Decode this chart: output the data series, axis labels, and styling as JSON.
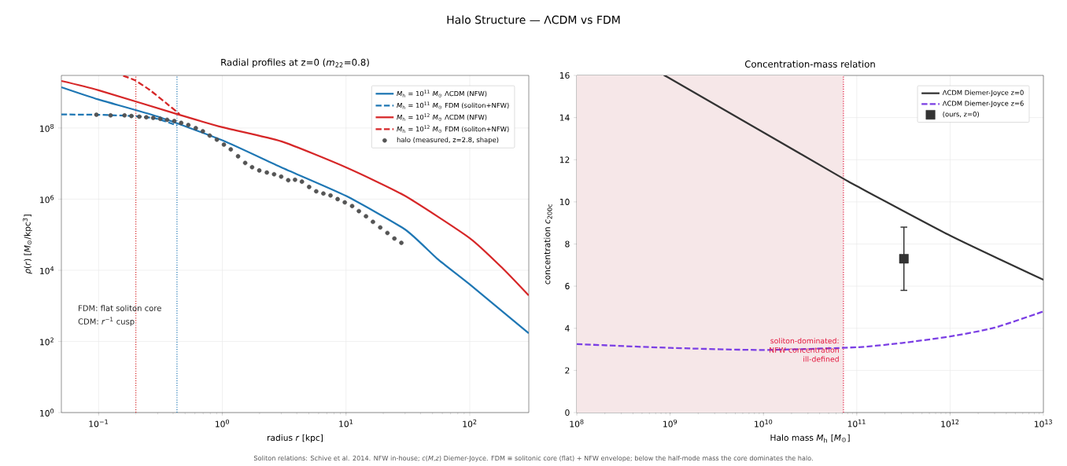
{
  "chart_data": [
    {
      "type": "line",
      "title": "Radial profiles at z=0  (*m*$_{22}$=0.8)",
      "xlabel": "radius  *r* [kpc]",
      "ylabel": "*ρ*(*r*) [*M*$_{⊙}$/kpc$^{3}$]",
      "log": "xy",
      "xlim": [
        0.05,
        300
      ],
      "ylim": [
        1,
        3000000000.0
      ],
      "xticks": [
        {
          "value": 0.1,
          "label": "10$^{−1}$"
        },
        {
          "value": 1,
          "label": "10$^{0}$"
        },
        {
          "value": 10,
          "label": "10$^{1}$"
        },
        {
          "value": 100,
          "label": "10$^{2}$"
        }
      ],
      "yticks": [
        {
          "value": 1,
          "label": "10$^{0}$"
        },
        {
          "value": 100,
          "label": "10$^{2}$"
        },
        {
          "value": 10000,
          "label": "10$^{4}$"
        },
        {
          "value": 1000000,
          "label": "10$^{6}$"
        },
        {
          "value": 100000000,
          "label": "10$^{8}$"
        }
      ],
      "grid": true,
      "legend": "top right",
      "series": [
        {
          "name": "*M*$_{h}$ = 10$^{11}$ *M*$_{⊙}$ ΛCDM (NFW)",
          "color": "#1f77b4",
          "line_style": "solid",
          "x": [
            0.05,
            0.1,
            0.3,
            1,
            3,
            10,
            30,
            54.7,
            100,
            300
          ],
          "values": [
            1400000000.0,
            630000000.0,
            210000000.0,
            45000000.0,
            7800000.0,
            1230000.0,
            140000.0,
            21000.0,
            4000,
            170
          ]
        },
        {
          "name": "*M*$_{h}$ = 10$^{11}$ *M*$_{⊙}$ FDM (soliton+NFW)",
          "color": "#1f77b4",
          "line_style": "dashed",
          "x": [
            0.05,
            0.1,
            0.2,
            0.3,
            0.43
          ],
          "values": [
            240000000.0,
            235000000.0,
            215000000.0,
            180000000.0,
            117000000.0
          ]
        },
        {
          "name": "*M*$_{h}$ = 10$^{12}$ *M*$_{⊙}$ ΛCDM (NFW)",
          "color": "#d62728",
          "line_style": "solid",
          "x": [
            0.05,
            0.1,
            0.44,
            1,
            3,
            10,
            30,
            100,
            186,
            300
          ],
          "values": [
            2100000000.0,
            1150000000.0,
            240000000.0,
            105000000.0,
            42000000.0,
            7800000.0,
            1230000.0,
            80000.0,
            11000.0,
            1950
          ]
        },
        {
          "name": "*M*$_{h}$ = 10$^{12}$ *M*$_{⊙}$ FDM (soliton+NFW)",
          "color": "#d62728",
          "line_style": "dashed",
          "x": [
            0.158,
            0.196,
            0.259,
            0.347,
            0.451
          ],
          "values": [
            2950000000.0,
            2200000000.0,
            1170000000.0,
            520000000.0,
            245000000.0
          ]
        },
        {
          "name": "halo (measured, z=2.8, shape)",
          "color": "#555555",
          "type": "scatter",
          "marker": "circle",
          "x": [
            0.096,
            0.125,
            0.162,
            0.184,
            0.213,
            0.243,
            0.276,
            0.315,
            0.358,
            0.409,
            0.465,
            0.531,
            0.61,
            0.696,
            0.791,
            0.903,
            1.03,
            1.17,
            1.34,
            1.53,
            1.74,
            1.99,
            2.29,
            2.62,
            2.99,
            3.41,
            3.87,
            4.4,
            5.03,
            5.74,
            6.56,
            7.49,
            8.55,
            9.77,
            11.2,
            12.7,
            14.5,
            16.5,
            18.9,
            21.6,
            24.6,
            28.0
          ],
          "values": [
            236000000.0,
            226000000.0,
            226000000.0,
            217000000.0,
            208000000.0,
            200000000.0,
            192000000.0,
            181000000.0,
            170000000.0,
            157000000.0,
            139000000.0,
            121000000.0,
            99000000.0,
            81000000.0,
            61000000.0,
            47000000.0,
            34000000.0,
            25000000.0,
            16000000.0,
            10400000.0,
            7900000.0,
            6400000.0,
            5600000.0,
            5000000.0,
            4300000.0,
            3400000.0,
            3500000.0,
            3100000.0,
            2200000.0,
            1660000.0,
            1440000.0,
            1270000.0,
            1000000.0,
            810000.0,
            640000.0,
            460000.0,
            330000.0,
            230000.0,
            160000.0,
            112000.0,
            78000.0,
            59000.0
          ]
        }
      ],
      "ref_lines": [
        {
          "axis": "x",
          "value": 0.2,
          "color": "#d62728",
          "line_style": "dotted"
        },
        {
          "axis": "x",
          "value": 0.43,
          "color": "#1f77b4",
          "line_style": "dotted"
        }
      ],
      "annotations": [
        "Halo Structure — ΛCDM vs FDM",
        "FDM: flat soliton core",
        "CDM: *r*$^{−1}$ cusp",
        "Soliton relations: Schive et al. 2014. NFW in-house; *c*(*M*,*z*) Diemer-Joyce. FDM ≡ solitonic core (flat) + NFW envelope; below the half-mode mass the core dominates the halo."
      ]
    },
    {
      "type": "line",
      "title": "Concentration-mass relation",
      "xlabel": "Halo mass  *M*$_{h}$ [*M*$_{⊙}$]",
      "ylabel": "concentration *c*$_{200c}$",
      "log": "x",
      "xlim": [
        100000000.0,
        10000000000000.0
      ],
      "ylim": [
        0,
        16
      ],
      "xticks": [
        {
          "value": 100000000.0,
          "label": "10$^{8}$"
        },
        {
          "value": 1000000000.0,
          "label": "10$^{9}$"
        },
        {
          "value": 10000000000.0,
          "label": "10$^{10}$"
        },
        {
          "value": 100000000000.0,
          "label": "10$^{11}$"
        },
        {
          "value": 1000000000000.0,
          "label": "10$^{12}$"
        },
        {
          "value": 10000000000000.0,
          "label": "10$^{13}$"
        }
      ],
      "yticks": [
        0,
        2,
        4,
        6,
        8,
        10,
        12,
        14,
        16
      ],
      "grid": true,
      "legend": "top right",
      "series": [
        {
          "name": "ΛCDM Diemer-Joyce z=0",
          "color": "#333333",
          "line_style": "solid",
          "x": [
            880000000.0,
            1000000000.0,
            10000000000.0,
            72000000000.0,
            100000000000.0,
            1000000000000.0,
            10000000000000.0
          ],
          "values": [
            16,
            15.85,
            13.3,
            11.1,
            10.75,
            8.4,
            6.3
          ]
        },
        {
          "name": "ΛCDM Diemer-Joyce z=6",
          "color": "#7b3fe4",
          "line_style": "dashed",
          "x": [
            100000000.0,
            1000000000.0,
            10000000000.0,
            100000000000.0,
            300000000000.0,
            1000000000000.0,
            3000000000000.0,
            10000000000000.0
          ],
          "values": [
            3.25,
            3.07,
            2.97,
            3.1,
            3.3,
            3.61,
            4.03,
            4.8
          ]
        },
        {
          "name": "(ours, z=0)",
          "color": "#333333",
          "type": "scatter",
          "marker": "square",
          "x": [
            320000000000.0
          ],
          "values": [
            7.3
          ],
          "errors": [
            [
              5.8,
              8.8
            ]
          ]
        }
      ],
      "ref_lines": [
        {
          "axis": "x",
          "value": 72000000000.0,
          "color": "#e3173e",
          "line_style": "dotted"
        }
      ],
      "bands": [
        {
          "axis": "x",
          "from": 100000000.0,
          "to": 72000000000.0,
          "color": "#f6e7e8"
        }
      ],
      "annotations": [
        "soliton-dominated: NFW concentration ill-defined"
      ]
    }
  ]
}
